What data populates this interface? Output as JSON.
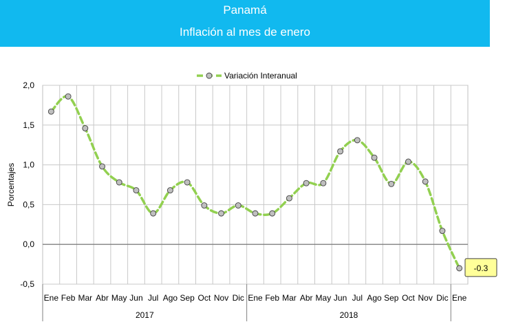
{
  "header": {
    "title": "Panamá",
    "subtitle": "Inflación al mes de enero"
  },
  "chart_data": {
    "type": "line",
    "title": "",
    "ylabel": "Porcentajes",
    "xlabel": "",
    "ylim": [
      -0.5,
      2.0
    ],
    "ytick_labels": [
      "2,0",
      "1,5",
      "1,0",
      "0,5",
      "0,0",
      "-0,5"
    ],
    "categories": [
      "Ene",
      "Feb",
      "Mar",
      "Abr",
      "May",
      "Jun",
      "Jul",
      "Ago",
      "Sep",
      "Oct",
      "Nov",
      "Dic",
      "Ene",
      "Feb",
      "Mar",
      "Abr",
      "May",
      "Jun",
      "Jul",
      "Ago",
      "Sep",
      "Oct",
      "Nov",
      "Dic",
      "Ene"
    ],
    "year_groups": [
      {
        "label": "2017",
        "start": 0,
        "end": 11
      },
      {
        "label": "2018",
        "start": 12,
        "end": 23
      }
    ],
    "series": [
      {
        "name": "Variación Interanual",
        "color": "#92d050",
        "marker_color": "#bfbfbf",
        "values": [
          1.67,
          1.86,
          1.46,
          0.98,
          0.78,
          0.68,
          0.39,
          0.68,
          0.78,
          0.49,
          0.39,
          0.49,
          0.39,
          0.39,
          0.58,
          0.77,
          0.77,
          1.17,
          1.31,
          1.09,
          0.76,
          1.04,
          0.79,
          0.17,
          -0.3
        ]
      }
    ],
    "last_point_label": "-0.3",
    "legend_position": "top-center",
    "grid": true
  }
}
